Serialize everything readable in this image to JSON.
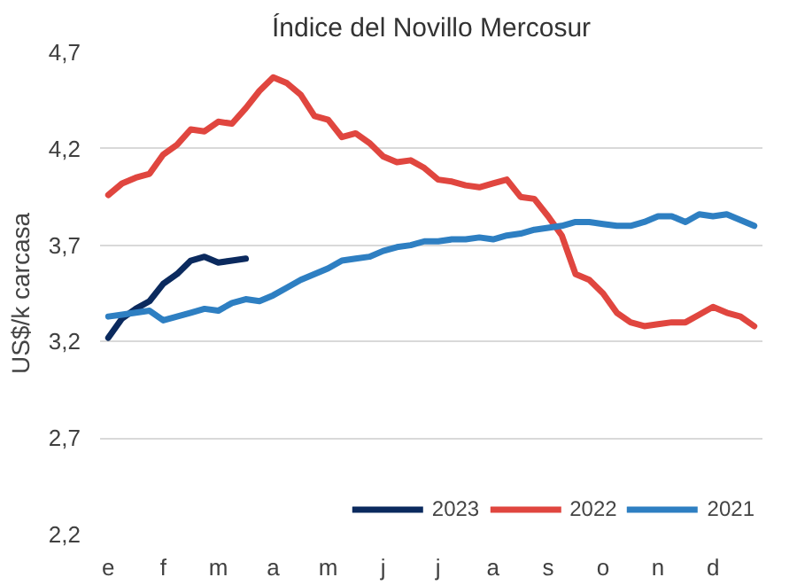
{
  "chart_data": {
    "type": "line",
    "title": "Índice del Novillo Mercosur",
    "ylabel": "US$/k carcasa",
    "ylim": [
      2.2,
      4.7
    ],
    "yticks": [
      {
        "value": 2.2,
        "label": "2,2"
      },
      {
        "value": 2.7,
        "label": "2,7"
      },
      {
        "value": 3.2,
        "label": "3,2"
      },
      {
        "value": 3.7,
        "label": "3,7"
      },
      {
        "value": 4.2,
        "label": "4,2"
      },
      {
        "value": 4.7,
        "label": "4,7"
      }
    ],
    "categories": [
      "e",
      null,
      null,
      null,
      "f",
      null,
      null,
      null,
      "m",
      null,
      null,
      null,
      "a",
      null,
      null,
      null,
      "m",
      null,
      null,
      null,
      "j",
      null,
      null,
      null,
      "j",
      null,
      null,
      null,
      "a",
      null,
      null,
      null,
      "s",
      null,
      null,
      null,
      "o",
      null,
      null,
      null,
      "n",
      null,
      null,
      null,
      "d",
      null,
      null,
      null
    ],
    "grid": "y",
    "legend": "bottom right",
    "line_style": "solid",
    "series": [
      {
        "name": "2023",
        "color": "#0b2a5e",
        "values": [
          3.22,
          3.32,
          3.37,
          3.41,
          3.5,
          3.55,
          3.62,
          3.64,
          3.61,
          3.62,
          3.63,
          null,
          null,
          null,
          null,
          null,
          null,
          null,
          null,
          null,
          null,
          null,
          null,
          null,
          null,
          null,
          null,
          null,
          null,
          null,
          null,
          null,
          null,
          null,
          null,
          null,
          null,
          null,
          null,
          null,
          null,
          null,
          null,
          null,
          null,
          null,
          null,
          null
        ]
      },
      {
        "name": "2022",
        "color": "#e0463f",
        "values": [
          3.96,
          4.02,
          4.05,
          4.07,
          4.17,
          4.22,
          4.3,
          4.29,
          4.34,
          4.33,
          4.41,
          4.5,
          4.57,
          4.54,
          4.48,
          4.37,
          4.35,
          4.26,
          4.28,
          4.23,
          4.16,
          4.13,
          4.14,
          4.1,
          4.04,
          4.03,
          4.01,
          4.0,
          4.02,
          4.04,
          3.95,
          3.94,
          3.85,
          3.75,
          3.55,
          3.52,
          3.45,
          3.35,
          3.3,
          3.28,
          3.29,
          3.3,
          3.3,
          3.34,
          3.38,
          3.35,
          3.33,
          3.28
        ]
      },
      {
        "name": "2021",
        "color": "#2e7fc2",
        "values": [
          3.33,
          3.34,
          3.35,
          3.36,
          3.31,
          3.33,
          3.35,
          3.37,
          3.36,
          3.4,
          3.42,
          3.41,
          3.44,
          3.48,
          3.52,
          3.55,
          3.58,
          3.62,
          3.63,
          3.64,
          3.67,
          3.69,
          3.7,
          3.72,
          3.72,
          3.73,
          3.73,
          3.74,
          3.73,
          3.75,
          3.76,
          3.78,
          3.79,
          3.8,
          3.82,
          3.82,
          3.81,
          3.8,
          3.8,
          3.82,
          3.85,
          3.85,
          3.82,
          3.86,
          3.85,
          3.86,
          3.83,
          3.8
        ]
      }
    ]
  }
}
